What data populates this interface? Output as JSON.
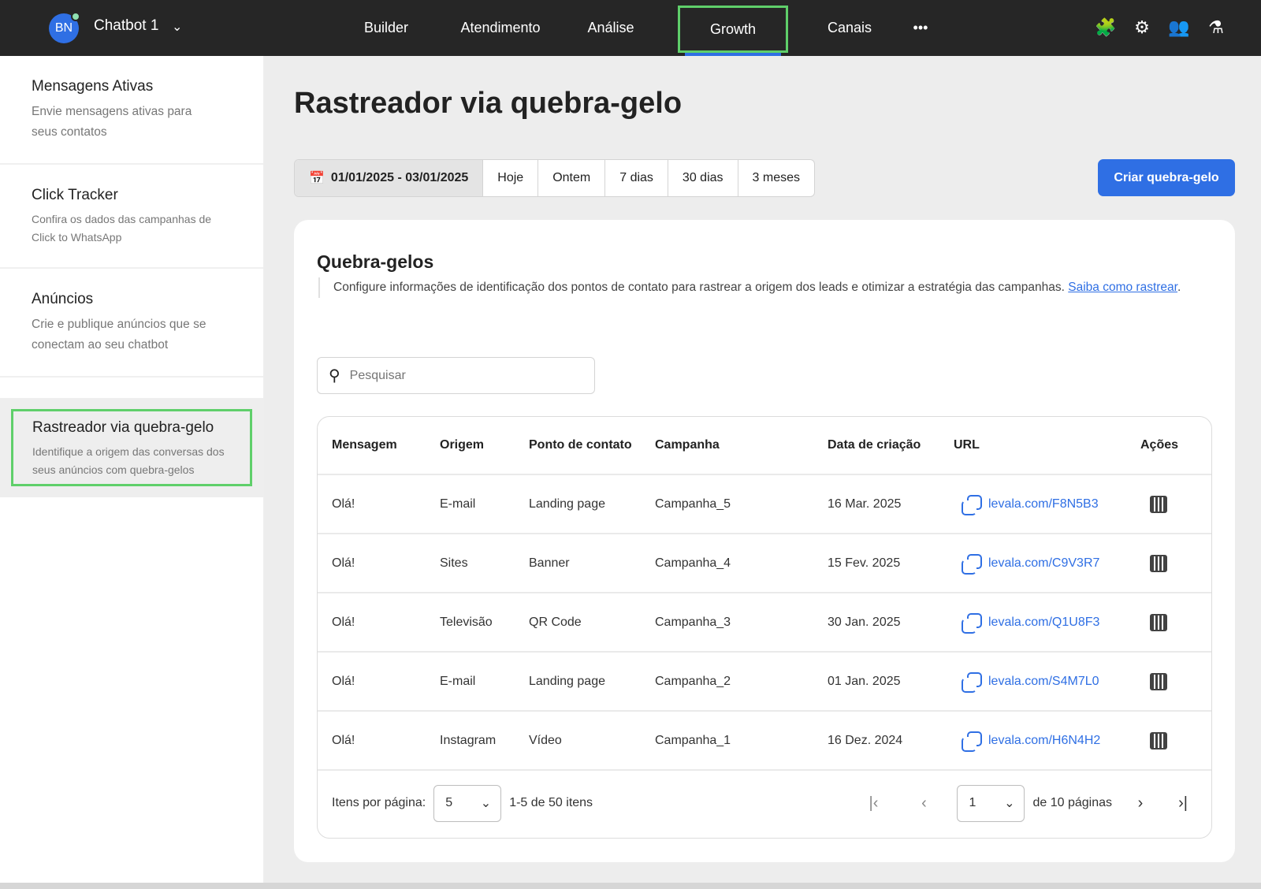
{
  "header": {
    "avatar": "BN",
    "bot_name": "Chatbot 1",
    "nav": [
      "Builder",
      "Atendimento",
      "Análise",
      "Growth",
      "Canais",
      "•••"
    ],
    "active_nav": "Growth",
    "icons": [
      "puzzle-icon",
      "gear-icon",
      "users-icon",
      "flask-icon"
    ]
  },
  "sidebar": {
    "items": [
      {
        "title": "Mensagens Ativas",
        "desc": "Envie mensagens ativas para seus contatos"
      },
      {
        "title": "Click Tracker",
        "desc": "Confira os dados das campanhas de Click to WhatsApp"
      },
      {
        "title": "Anúncios",
        "desc": "Crie e publique anúncios que se conectam ao seu chatbot"
      },
      {
        "title": "Rastreador via quebra-gelo",
        "desc": "Identifique a origem das conversas dos seus anúncios com quebra-gelos"
      }
    ]
  },
  "page": {
    "title": "Rastreador via quebra-gelo",
    "date_range": "01/01/2025 - 03/01/2025",
    "presets": [
      "Hoje",
      "Ontem",
      "7 dias",
      "30 dias",
      "3 meses"
    ],
    "create_label": "Criar quebra-gelo"
  },
  "card": {
    "title": "Quebra-gelos",
    "desc": "Configure informações de identificação dos pontos de contato para rastrear a origem dos leads e otimizar a estratégia das campanhas.",
    "link": "Saiba como rastrear",
    "link_suffix": ".",
    "search_placeholder": "Pesquisar"
  },
  "table": {
    "columns": [
      "Mensagem",
      "Origem",
      "Ponto de contato",
      "Campanha",
      "Data de criação",
      "URL",
      "Ações"
    ],
    "rows": [
      [
        "Olá!",
        "E-mail",
        "Landing page",
        "Campanha_5",
        "16 Mar. 2025",
        "levala.com/F8N5B3"
      ],
      [
        "Olá!",
        "Sites",
        "Banner",
        "Campanha_4",
        "15 Fev. 2025",
        "levala.com/C9V3R7"
      ],
      [
        "Olá!",
        "Televisão",
        "QR Code",
        "Campanha_3",
        "30 Jan. 2025",
        "levala.com/Q1U8F3"
      ],
      [
        "Olá!",
        "E-mail",
        "Landing page",
        "Campanha_2",
        "01 Jan. 2025",
        "levala.com/S4M7L0"
      ],
      [
        "Olá!",
        "Instagram",
        "Vídeo",
        "Campanha_1",
        "16 Dez. 2024",
        "levala.com/H6N4H2"
      ]
    ]
  },
  "pagination": {
    "per_page_label": "Itens por página:",
    "per_page": "5",
    "range": "1-5 de 50 itens",
    "page": "1",
    "of_pages": "de 10 páginas"
  },
  "colors": {
    "accent": "#2f6fe4",
    "topbar": "#262626",
    "highlight": "#5fcf6a"
  }
}
